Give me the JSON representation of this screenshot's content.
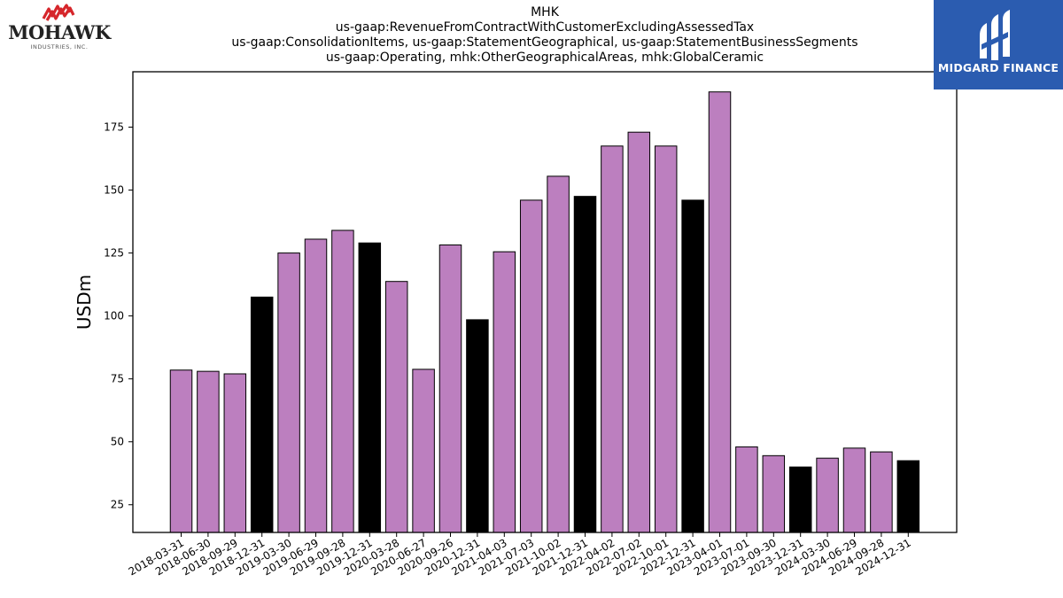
{
  "header": {
    "title_lines": [
      "MHK",
      "us-gaap:RevenueFromContractWithCustomerExcludingAssessedTax",
      "us-gaap:ConsolidationItems, us-gaap:StatementGeographical, us-gaap:StatementBusinessSegments",
      "us-gaap:Operating, mhk:OtherGeographicalAreas, mhk:GlobalCeramic"
    ]
  },
  "logos": {
    "left": {
      "name": "MOHAWK",
      "sub": "INDUSTRIES, INC.",
      "accent": "#d6262b"
    },
    "right": {
      "name": "MIDGARD FINANCE",
      "background": "#2b5cb0"
    }
  },
  "chart_data": {
    "type": "bar",
    "ylabel": "USDm",
    "xlabel": "",
    "ylim": [
      14,
      197
    ],
    "yticks": [
      25,
      50,
      75,
      100,
      125,
      150,
      175
    ],
    "grid": false,
    "colors": {
      "quarter": "#bc7fbf",
      "year_end": "#000000"
    },
    "categories": [
      "2018-03-31",
      "2018-06-30",
      "2018-09-29",
      "2018-12-31",
      "2019-03-30",
      "2019-06-29",
      "2019-09-28",
      "2019-12-31",
      "2020-03-28",
      "2020-06-27",
      "2020-09-26",
      "2020-12-31",
      "2021-04-03",
      "2021-07-03",
      "2021-10-02",
      "2021-12-31",
      "2022-04-02",
      "2022-07-02",
      "2022-10-01",
      "2022-12-31",
      "2023-04-01",
      "2023-07-01",
      "2023-09-30",
      "2023-12-31",
      "2024-03-30",
      "2024-06-29",
      "2024-09-28",
      "2024-12-31"
    ],
    "values": [
      78.5,
      78.0,
      77.0,
      107.5,
      125.0,
      130.5,
      134.0,
      129.0,
      113.7,
      78.8,
      128.2,
      98.5,
      125.5,
      146.0,
      155.5,
      147.5,
      167.5,
      173.0,
      167.5,
      146.0,
      189.0,
      48.0,
      44.5,
      40.0,
      43.5,
      47.5,
      46.0,
      42.5
    ],
    "year_end_flags": [
      false,
      false,
      false,
      true,
      false,
      false,
      false,
      true,
      false,
      false,
      false,
      true,
      false,
      false,
      false,
      true,
      false,
      false,
      false,
      true,
      false,
      false,
      false,
      true,
      false,
      false,
      false,
      true
    ]
  }
}
